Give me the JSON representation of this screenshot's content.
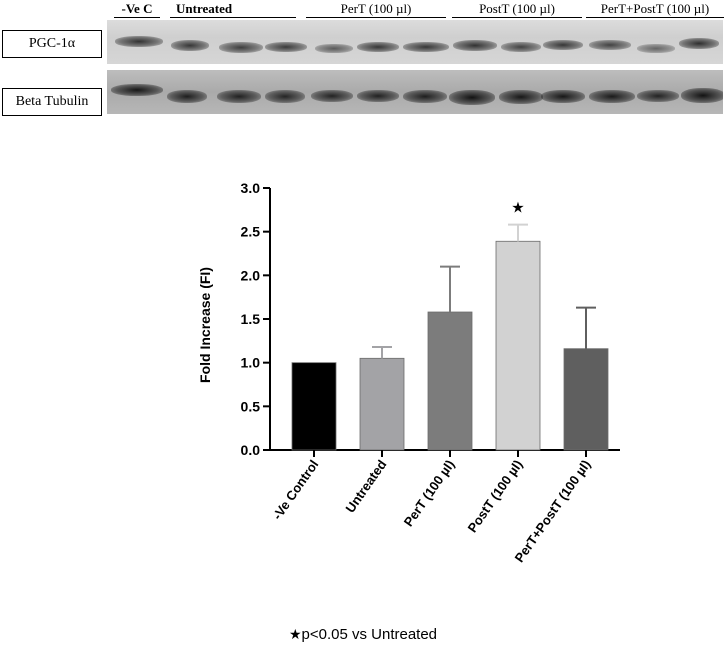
{
  "blot": {
    "lane_groups": [
      {
        "label": "-Ve C",
        "lanes": 1
      },
      {
        "label": "Untreated",
        "lanes": 3
      },
      {
        "label": "PerT (100 µl)",
        "lanes": 3
      },
      {
        "label": "PostT (100 µl)",
        "lanes": 3
      },
      {
        "label": "PerT+PostT (100 µl)",
        "lanes": 3
      }
    ],
    "row_labels": {
      "pgc": "PGC-1α",
      "tubulin": "Beta Tubulin"
    }
  },
  "chart_data": {
    "type": "bar",
    "categories": [
      "-Ve Control",
      "Untreated",
      "PerT (100  µl)",
      "PostT (100  µl)",
      "PerT+PostT (100  µl)"
    ],
    "values": [
      1.0,
      1.05,
      1.58,
      2.39,
      1.16
    ],
    "error": [
      0,
      0.13,
      0.52,
      0.19,
      0.47
    ],
    "colors": [
      "#000000",
      "#a3a3a6",
      "#7c7c7c",
      "#d2d2d2",
      "#5f5f5f"
    ],
    "ylabel": "Fold Increase (FI)",
    "ylim": [
      0,
      3.0
    ],
    "yticks": [
      "0.0",
      "0.5",
      "1.0",
      "1.5",
      "2.0",
      "2.5",
      "3.0"
    ],
    "significance_marker": {
      "category": "PostT (100  µl)",
      "symbol": "★"
    }
  },
  "footnote": {
    "symbol": "★",
    "text": "p<0.05 vs Untreated"
  }
}
